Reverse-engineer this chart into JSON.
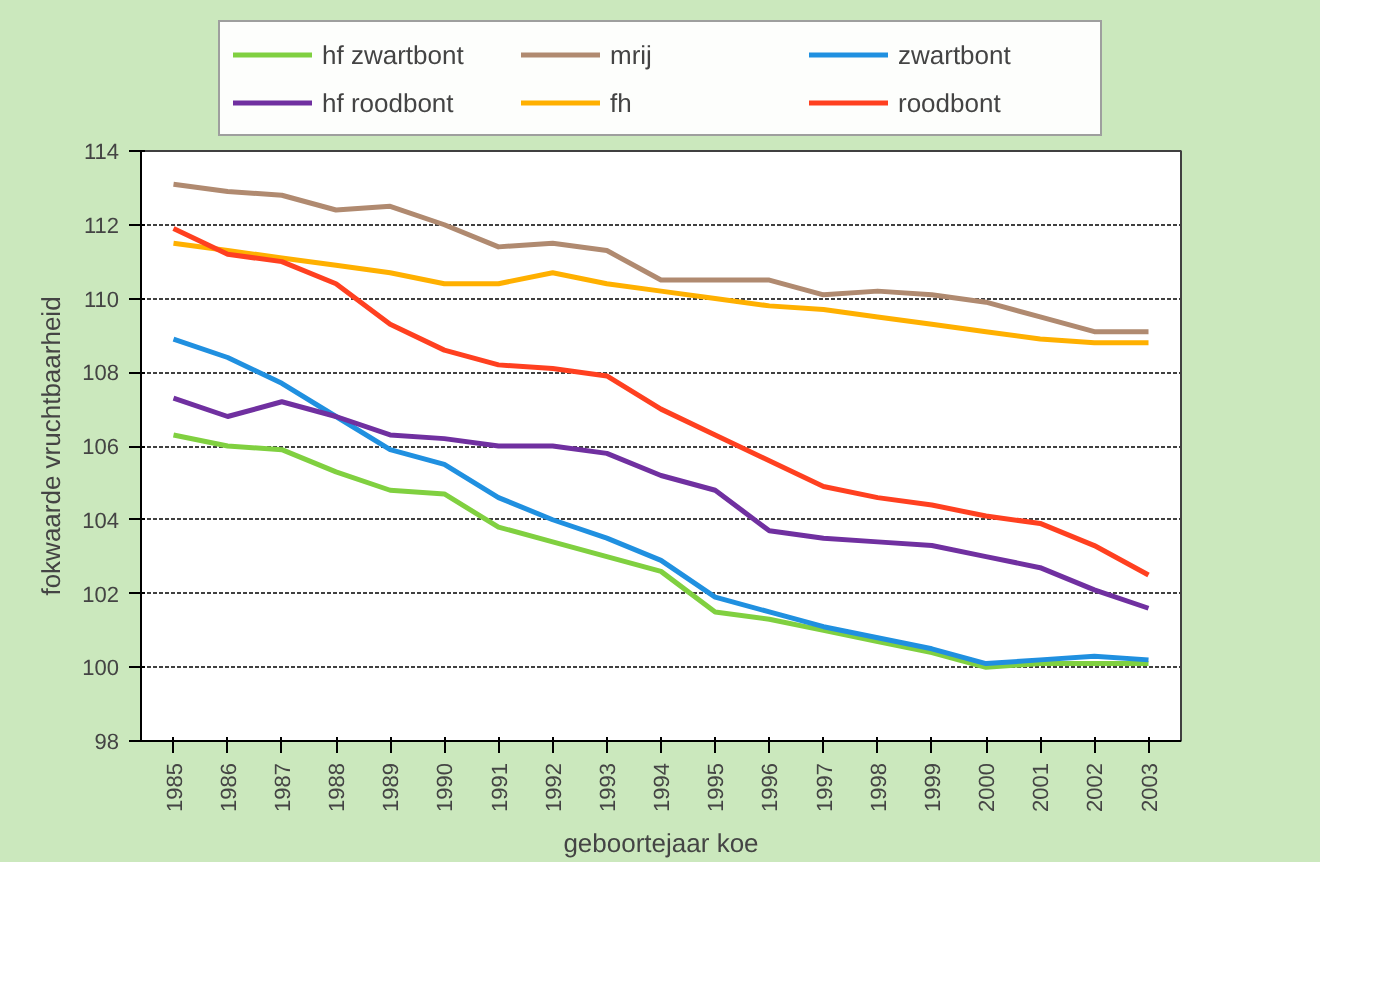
{
  "chart_data": {
    "type": "line",
    "xlabel": "geboortejaar koe",
    "ylabel": "fokwaarde vruchtbaarheid",
    "categories": [
      "1985",
      "1986",
      "1987",
      "1988",
      "1989",
      "1990",
      "1991",
      "1992",
      "1993",
      "1994",
      "1995",
      "1996",
      "1997",
      "1998",
      "1999",
      "2000",
      "2001",
      "2002",
      "2003"
    ],
    "ylim": [
      98,
      114
    ],
    "yticks": [
      98,
      100,
      102,
      104,
      106,
      108,
      110,
      112,
      114
    ],
    "grid": "y",
    "legend": "top",
    "marker": "none",
    "line_style": "solid",
    "series": [
      {
        "name": "hf zwartbont",
        "color": "#80d040",
        "values": [
          106.3,
          106.0,
          105.9,
          105.3,
          104.8,
          104.7,
          103.8,
          103.4,
          103.0,
          102.6,
          101.5,
          101.3,
          101.0,
          100.7,
          100.4,
          100.0,
          100.1,
          100.1,
          100.1
        ]
      },
      {
        "name": "mrij",
        "color": "#b08a70",
        "values": [
          113.1,
          112.9,
          112.8,
          112.4,
          112.5,
          112.0,
          111.4,
          111.5,
          111.3,
          110.5,
          110.5,
          110.5,
          110.1,
          110.2,
          110.1,
          109.9,
          109.5,
          109.1,
          109.1
        ]
      },
      {
        "name": "zwartbont",
        "color": "#2090e0",
        "values": [
          108.9,
          108.4,
          107.7,
          106.8,
          105.9,
          105.5,
          104.6,
          104.0,
          103.5,
          102.9,
          101.9,
          101.5,
          101.1,
          100.8,
          100.5,
          100.1,
          100.2,
          100.3,
          100.2
        ]
      },
      {
        "name": "hf roodbont",
        "color": "#7030a0",
        "values": [
          107.3,
          106.8,
          107.2,
          106.8,
          106.3,
          106.2,
          106.0,
          106.0,
          105.8,
          105.2,
          104.8,
          103.7,
          103.5,
          103.4,
          103.3,
          103.0,
          102.7,
          102.1,
          101.6
        ]
      },
      {
        "name": "fh",
        "color": "#ffb000",
        "values": [
          111.5,
          111.3,
          111.1,
          110.9,
          110.7,
          110.4,
          110.4,
          110.7,
          110.4,
          110.2,
          110.0,
          109.8,
          109.7,
          109.5,
          109.3,
          109.1,
          108.9,
          108.8,
          108.8
        ]
      },
      {
        "name": "roodbont",
        "color": "#ff4020",
        "values": [
          111.9,
          111.2,
          111.0,
          110.4,
          109.3,
          108.6,
          108.2,
          108.1,
          107.9,
          107.0,
          106.3,
          105.6,
          104.9,
          104.6,
          104.4,
          104.1,
          103.9,
          103.3,
          102.5
        ]
      }
    ]
  }
}
